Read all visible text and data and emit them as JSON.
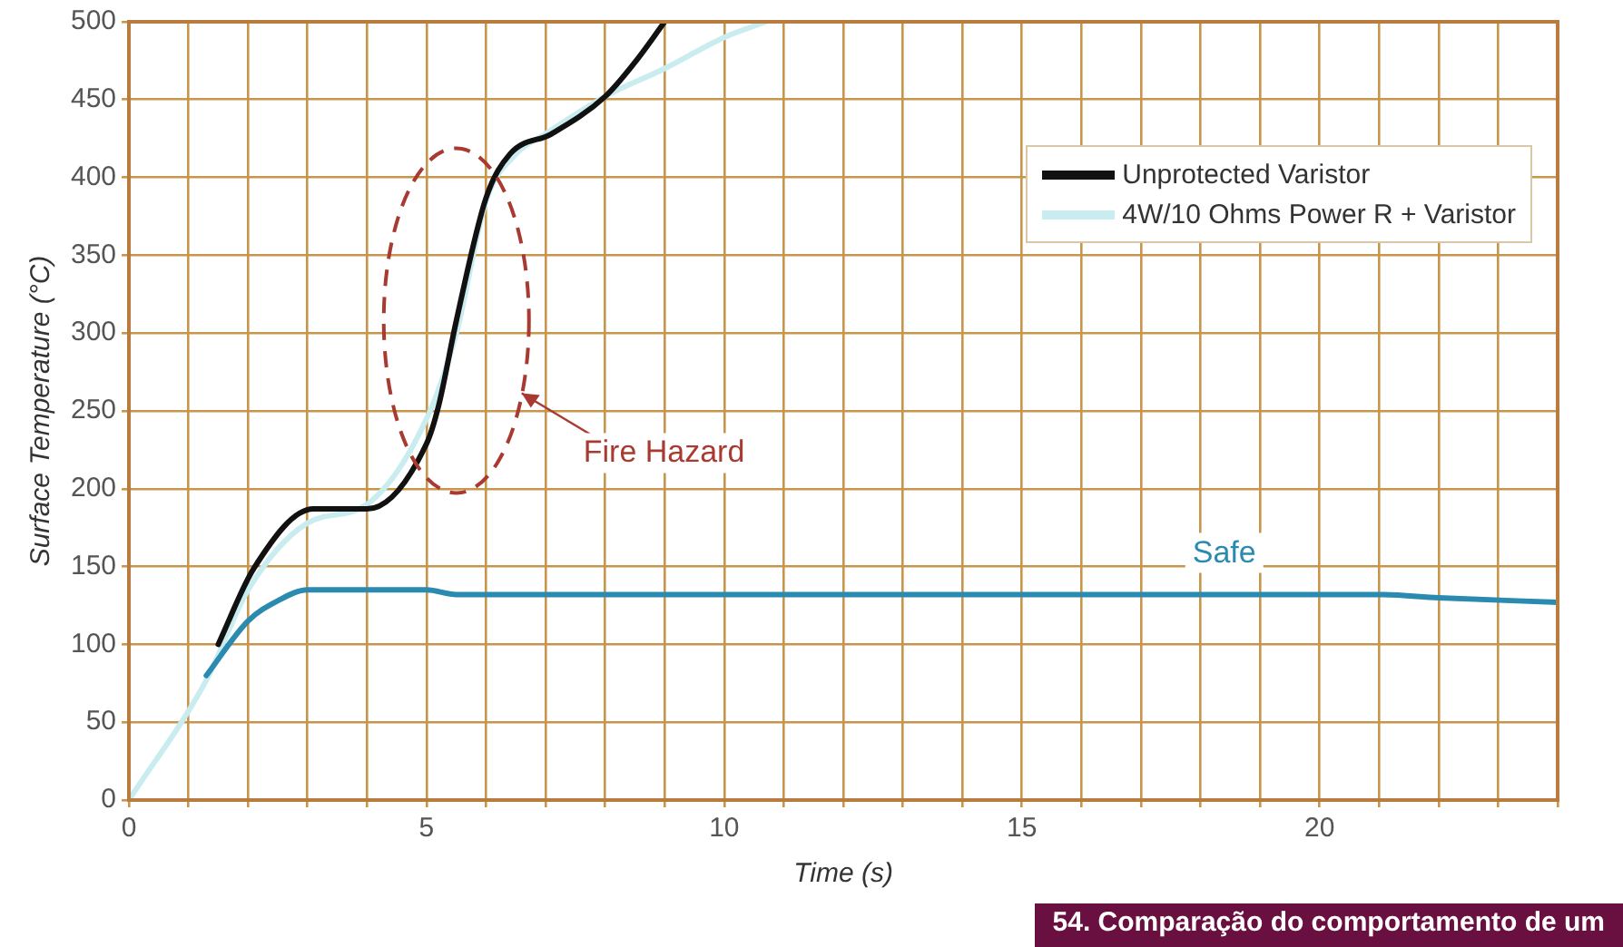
{
  "chart_data": {
    "type": "line",
    "xlabel": "Time (s)",
    "ylabel": "Surface Temperature (°C)",
    "xlim": [
      0,
      24
    ],
    "ylim": [
      0,
      500
    ],
    "xticks": [
      0,
      {
        "value": 1,
        "label": null
      },
      {
        "value": 2,
        "label": null
      },
      {
        "value": 3,
        "label": null
      },
      {
        "value": 4,
        "label": null
      },
      5,
      {
        "value": 6,
        "label": null
      },
      {
        "value": 7,
        "label": null
      },
      {
        "value": 8,
        "label": null
      },
      {
        "value": 9,
        "label": null
      },
      10,
      {
        "value": 11,
        "label": null
      },
      {
        "value": 12,
        "label": null
      },
      {
        "value": 13,
        "label": null
      },
      {
        "value": 14,
        "label": null
      },
      15,
      {
        "value": 16,
        "label": null
      },
      {
        "value": 17,
        "label": null
      },
      {
        "value": 18,
        "label": null
      },
      {
        "value": 19,
        "label": null
      },
      20,
      {
        "value": 21,
        "label": null
      },
      {
        "value": 22,
        "label": null
      },
      {
        "value": 23,
        "label": null
      },
      {
        "value": 24,
        "label": null
      }
    ],
    "yticks": [
      0,
      50,
      100,
      150,
      200,
      250,
      300,
      350,
      400,
      450,
      500
    ],
    "grid": true,
    "legend": "top right",
    "marker": "none",
    "line_style": "solid",
    "series": [
      {
        "color": "#2a8ab0",
        "x": [
          1.3,
          2,
          2.5,
          3,
          5,
          5.5,
          21,
          22,
          24
        ],
        "values": [
          80,
          115,
          128,
          135,
          135,
          132,
          132,
          130,
          127
        ]
      },
      {
        "name": "Unprotected Varistor",
        "color": "#111111",
        "x": [
          1.5,
          2.1,
          3.1,
          4,
          5,
          5.2,
          5.5,
          6,
          6.4,
          7.1,
          8,
          8.5,
          9
        ],
        "values": [
          100,
          149,
          187,
          187,
          229,
          253,
          308,
          387,
          415,
          428,
          452,
          474,
          500
        ]
      },
      {
        "name": "4W/10 Ohms Power R + Varistor",
        "color": "#c8ecf0",
        "x": [
          0,
          1.3,
          2,
          3,
          4,
          5,
          5.5,
          6,
          6.5,
          7,
          8,
          9,
          10,
          10.7
        ],
        "values": [
          0,
          77,
          135,
          178,
          190,
          245,
          300,
          385,
          415,
          428,
          452,
          470,
          490,
          500
        ]
      }
    ],
    "annotations": [
      "Fire Hazard",
      {
        "text": "Safe",
        "x": 18.4,
        "y": 132
      },
      "54. Comparação do comportamento de um"
    ]
  }
}
